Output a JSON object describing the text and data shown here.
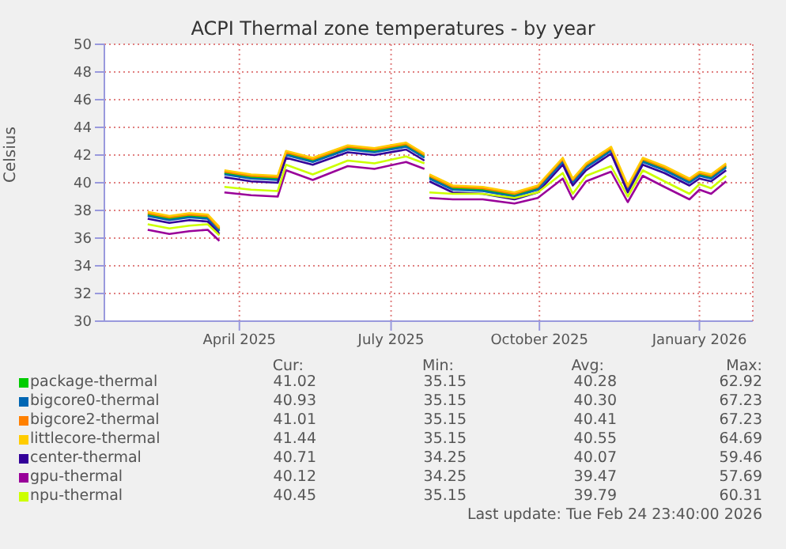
{
  "chart_data": {
    "type": "line",
    "title": "ACPI Thermal zone temperatures - by year",
    "ylabel": "Celsius",
    "x": [
      "2025-02-12",
      "2025-02-25",
      "2025-03-09",
      "2025-03-20",
      "2025-03-27",
      "2025-03-28",
      "2025-03-30",
      "2025-04-15",
      "2025-05-01",
      "2025-05-06",
      "2025-05-22",
      "2025-06-12",
      "2025-06-28",
      "2025-07-17",
      "2025-07-28",
      "2025-07-29",
      "2025-07-31",
      "2025-08-14",
      "2025-09-01",
      "2025-09-20",
      "2025-10-04",
      "2025-10-19",
      "2025-10-25",
      "2025-11-02",
      "2025-11-17",
      "2025-11-27",
      "2025-12-06",
      "2025-12-19",
      "2026-01-03",
      "2026-01-09",
      "2026-01-16",
      "2026-01-25"
    ],
    "series": [
      {
        "name": "package-thermal",
        "color": "#00cc00",
        "values": [
          37.7,
          37.4,
          37.6,
          37.5,
          36.6,
          null,
          40.7,
          40.4,
          40.3,
          42.1,
          41.6,
          42.5,
          42.3,
          42.7,
          41.9,
          null,
          40.4,
          39.6,
          39.5,
          39.1,
          39.6,
          41.6,
          40.1,
          41.2,
          42.4,
          39.6,
          41.6,
          41.0,
          40.1,
          40.6,
          40.4,
          41.2
        ]
      },
      {
        "name": "bigcore0-thermal",
        "color": "#0066b3",
        "values": [
          37.6,
          37.3,
          37.5,
          37.4,
          36.5,
          null,
          40.6,
          40.3,
          40.2,
          42.0,
          41.5,
          42.4,
          42.2,
          42.6,
          41.8,
          null,
          40.3,
          39.5,
          39.4,
          39.0,
          39.5,
          41.5,
          40.0,
          41.1,
          42.3,
          39.5,
          41.5,
          40.9,
          40.0,
          40.5,
          40.3,
          41.1
        ]
      },
      {
        "name": "bigcore2-thermal",
        "color": "#ff8000",
        "values": [
          37.8,
          37.5,
          37.7,
          37.6,
          36.7,
          null,
          40.8,
          40.5,
          40.4,
          42.2,
          41.7,
          42.6,
          42.4,
          42.8,
          42.0,
          null,
          40.5,
          39.7,
          39.6,
          39.2,
          39.7,
          41.7,
          40.2,
          41.3,
          42.5,
          39.7,
          41.7,
          41.1,
          40.2,
          40.7,
          40.5,
          41.3
        ]
      },
      {
        "name": "littlecore-thermal",
        "color": "#ffcc00",
        "values": [
          37.9,
          37.6,
          37.8,
          37.7,
          36.8,
          null,
          40.9,
          40.6,
          40.5,
          42.3,
          41.8,
          42.7,
          42.5,
          42.9,
          42.1,
          null,
          40.6,
          39.8,
          39.7,
          39.3,
          39.8,
          41.8,
          40.3,
          41.4,
          42.6,
          39.8,
          41.8,
          41.2,
          40.3,
          40.8,
          40.6,
          41.4
        ]
      },
      {
        "name": "center-thermal",
        "color": "#330099",
        "values": [
          37.4,
          37.1,
          37.3,
          37.2,
          36.3,
          null,
          40.4,
          40.1,
          40.0,
          41.8,
          41.3,
          42.2,
          42.0,
          42.4,
          41.6,
          null,
          40.1,
          39.3,
          39.2,
          38.8,
          39.3,
          41.3,
          39.8,
          40.9,
          42.1,
          39.3,
          41.3,
          40.7,
          39.8,
          40.3,
          40.1,
          40.9
        ]
      },
      {
        "name": "gpu-thermal",
        "color": "#990099",
        "values": [
          36.6,
          36.3,
          36.5,
          36.6,
          35.8,
          null,
          39.3,
          39.1,
          39.0,
          40.9,
          40.2,
          41.2,
          41.0,
          41.5,
          41.0,
          null,
          38.9,
          38.8,
          38.8,
          38.5,
          38.9,
          40.3,
          38.8,
          40.1,
          40.8,
          38.6,
          40.5,
          39.7,
          38.8,
          39.5,
          39.2,
          40.1
        ]
      },
      {
        "name": "npu-thermal",
        "color": "#ccff00",
        "values": [
          37.0,
          36.7,
          36.9,
          37.0,
          36.2,
          null,
          39.7,
          39.5,
          39.4,
          41.3,
          40.6,
          41.6,
          41.4,
          41.9,
          41.4,
          null,
          39.3,
          39.2,
          39.2,
          38.9,
          39.3,
          40.7,
          39.2,
          40.5,
          41.2,
          39.0,
          40.9,
          40.1,
          39.2,
          39.9,
          39.6,
          40.5
        ]
      }
    ],
    "xlim": [
      "2025-01-17",
      "2026-02-10"
    ],
    "xticks": [
      {
        "value": "2025-04-08",
        "label": "April 2025"
      },
      {
        "value": "2025-07-08",
        "label": "July 2025"
      },
      {
        "value": "2025-10-05",
        "label": "October 2025"
      },
      {
        "value": "2026-01-09",
        "label": "January 2026"
      }
    ],
    "ylim": [
      30,
      50
    ],
    "yticks": [
      30,
      32,
      34,
      36,
      38,
      40,
      42,
      44,
      46,
      48,
      50
    ],
    "grid": true,
    "legend": "bottom",
    "annotations": [
      "Cur:",
      "Min:",
      "Avg:",
      "Max:",
      "41.02",
      "35.15",
      "40.28",
      "62.92",
      "40.93",
      "35.15",
      "40.30",
      "67.23",
      "41.01",
      "35.15",
      "40.41",
      "67.23",
      "41.44",
      "35.15",
      "40.55",
      "64.69",
      "40.71",
      "34.25",
      "40.07",
      "59.46",
      "40.12",
      "34.25",
      "39.47",
      "57.69",
      "40.45",
      "35.15",
      "39.79",
      "60.31",
      "Last update: Tue Feb 24 23:40:00 2026"
    ]
  }
}
